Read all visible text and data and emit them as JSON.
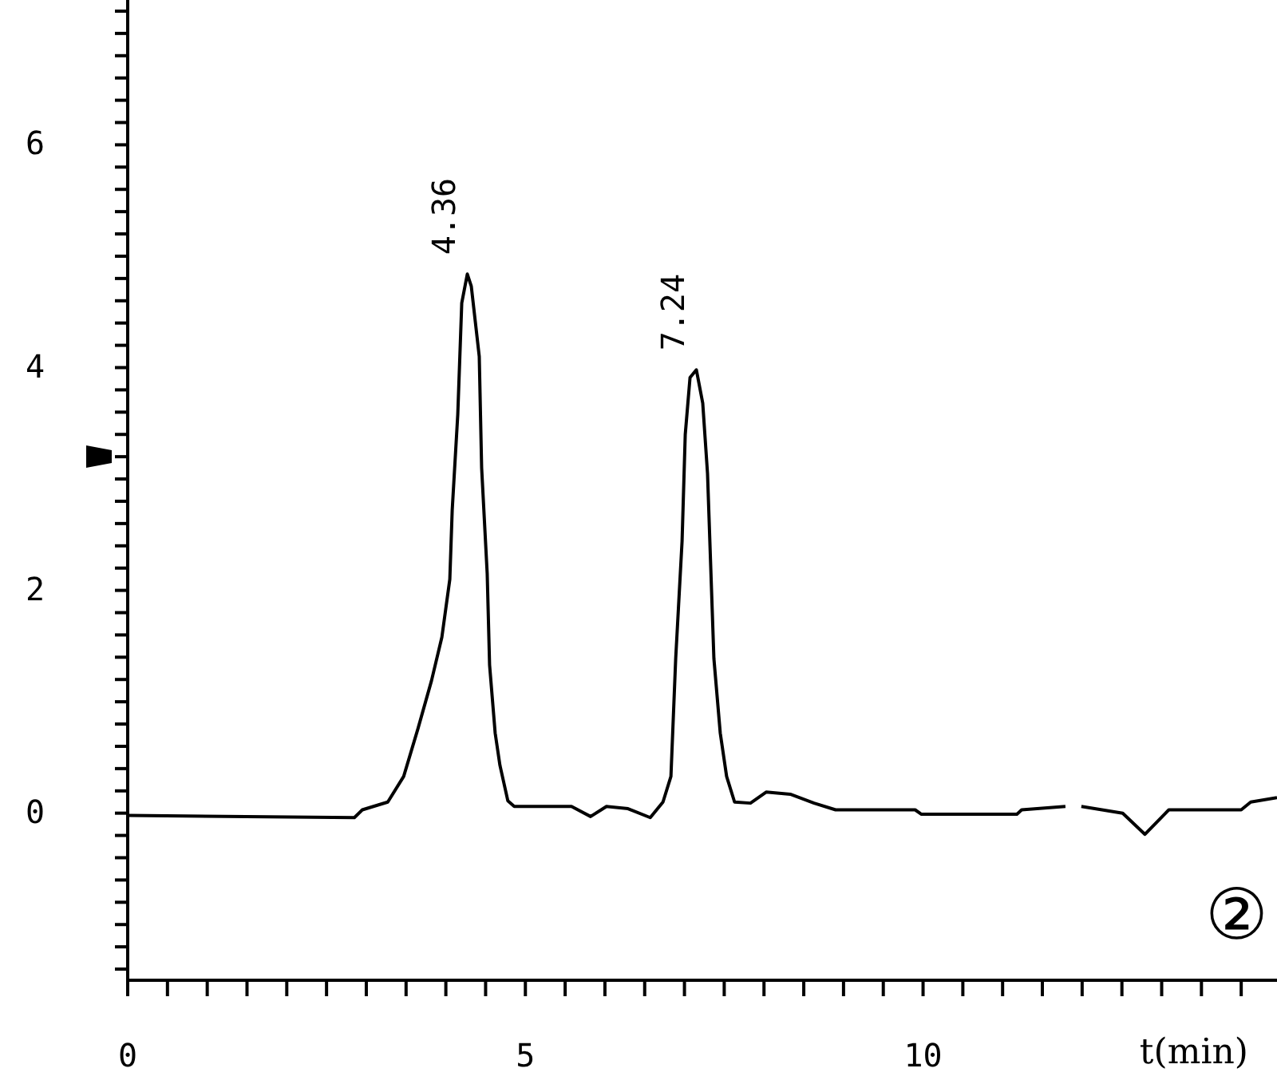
{
  "chart_data": {
    "type": "line",
    "xlabel": "t(min)",
    "x": [
      0,
      2.85,
      2.95,
      3.27,
      3.47,
      3.65,
      3.82,
      3.95,
      4.05,
      4.08,
      4.15,
      4.2,
      4.27,
      4.32,
      4.42,
      4.45,
      4.52,
      4.55,
      4.62,
      4.68,
      4.78,
      4.86,
      5.58,
      5.82,
      6.02,
      6.29,
      6.57,
      6.73,
      6.83,
      6.89,
      6.97,
      7.01,
      7.07,
      7.15,
      7.23,
      7.29,
      7.37,
      7.45,
      7.53,
      7.63,
      7.83,
      8.03,
      8.33,
      8.63,
      8.9,
      9.9,
      9.98,
      11.18,
      11.24,
      11.79,
      11.88,
      11.99,
      12.25,
      12.51,
      12.79,
      13.09,
      14.0,
      14.12,
      14.45
    ],
    "series": [
      {
        "color": "#000000",
        "values": [
          -0.02,
          -0.04,
          0.03,
          0.1,
          0.33,
          0.76,
          1.19,
          1.58,
          2.1,
          2.72,
          3.58,
          4.58,
          4.84,
          4.73,
          4.1,
          3.1,
          2.15,
          1.33,
          0.72,
          0.43,
          0.11,
          0.06,
          0.06,
          -0.03,
          0.06,
          0.04,
          -0.04,
          0.1,
          0.33,
          1.39,
          2.44,
          3.4,
          3.91,
          3.98,
          3.68,
          3.05,
          1.39,
          0.72,
          0.33,
          0.1,
          0.09,
          0.19,
          0.17,
          0.09,
          0.03,
          0.03,
          -0.01,
          -0.01,
          0.03,
          0.06,
          null,
          0.06,
          0.03,
          0,
          -0.19,
          0.03,
          0.03,
          0.1,
          0.14
        ]
      }
    ],
    "xlim": [
      0,
      14.45
    ],
    "xticks": [
      0,
      {
        "value": 0.5,
        "label": null
      },
      {
        "value": 1,
        "label": null
      },
      {
        "value": 1.5,
        "label": null
      },
      {
        "value": 2,
        "label": null
      },
      {
        "value": 2.5,
        "label": null
      },
      {
        "value": 3,
        "label": null
      },
      {
        "value": 3.5,
        "label": null
      },
      {
        "value": 4,
        "label": null
      },
      {
        "value": 4.5,
        "label": null
      },
      5,
      {
        "value": 5.5,
        "label": null
      },
      {
        "value": 6,
        "label": null
      },
      {
        "value": 6.5,
        "label": null
      },
      {
        "value": 7,
        "label": null
      },
      {
        "value": 7.5,
        "label": null
      },
      {
        "value": 8,
        "label": null
      },
      {
        "value": 8.5,
        "label": null
      },
      {
        "value": 9,
        "label": null
      },
      {
        "value": 9.5,
        "label": null
      },
      10,
      {
        "value": 10.5,
        "label": null
      },
      {
        "value": 11,
        "label": null
      },
      {
        "value": 11.5,
        "label": null
      },
      {
        "value": 12,
        "label": null
      },
      {
        "value": 12.5,
        "label": null
      },
      {
        "value": 13,
        "label": null
      },
      {
        "value": 13.5,
        "label": null
      },
      {
        "value": 14,
        "label": null
      }
    ],
    "ylim": [
      -1.5,
      7.3
    ],
    "yticks": [
      {
        "value": -1.4,
        "label": null
      },
      {
        "value": -1.2,
        "label": null
      },
      {
        "value": -1,
        "label": null
      },
      {
        "value": -0.8,
        "label": null
      },
      {
        "value": -0.6,
        "label": null
      },
      {
        "value": -0.4,
        "label": null
      },
      {
        "value": -0.2,
        "label": null
      },
      0,
      {
        "value": 0.2,
        "label": null
      },
      {
        "value": 0.4,
        "label": null
      },
      {
        "value": 0.6,
        "label": null
      },
      {
        "value": 0.8,
        "label": null
      },
      {
        "value": 1,
        "label": null
      },
      {
        "value": 1.2,
        "label": null
      },
      {
        "value": 1.4,
        "label": null
      },
      {
        "value": 1.6,
        "label": null
      },
      {
        "value": 1.8,
        "label": null
      },
      2,
      {
        "value": 2.2,
        "label": null
      },
      {
        "value": 2.4,
        "label": null
      },
      {
        "value": 2.6,
        "label": null
      },
      {
        "value": 2.8,
        "label": null
      },
      {
        "value": 3,
        "label": null
      },
      {
        "value": 3.2,
        "label": null
      },
      {
        "value": 3.4,
        "label": null
      },
      {
        "value": 3.6,
        "label": null
      },
      {
        "value": 3.8,
        "label": null
      },
      4,
      {
        "value": 4.2,
        "label": null
      },
      {
        "value": 4.4,
        "label": null
      },
      {
        "value": 4.6,
        "label": null
      },
      {
        "value": 4.8,
        "label": null
      },
      {
        "value": 5,
        "label": null
      },
      {
        "value": 5.2,
        "label": null
      },
      {
        "value": 5.4,
        "label": null
      },
      {
        "value": 5.6,
        "label": null
      },
      {
        "value": 5.8,
        "label": null
      },
      6,
      {
        "value": 6.2,
        "label": null
      },
      {
        "value": 6.4,
        "label": null
      },
      {
        "value": 6.6,
        "label": null
      },
      {
        "value": 6.8,
        "label": null
      },
      {
        "value": 7,
        "label": null
      },
      {
        "value": 7.2,
        "label": null
      }
    ],
    "marker": "none",
    "line_style": "solid",
    "grid": false,
    "annotations": [
      {
        "text": "4.36",
        "x": 4.36,
        "y": 4.84
      },
      {
        "text": "7.24",
        "x": 7.24,
        "y": 3.98
      },
      "②"
    ]
  }
}
